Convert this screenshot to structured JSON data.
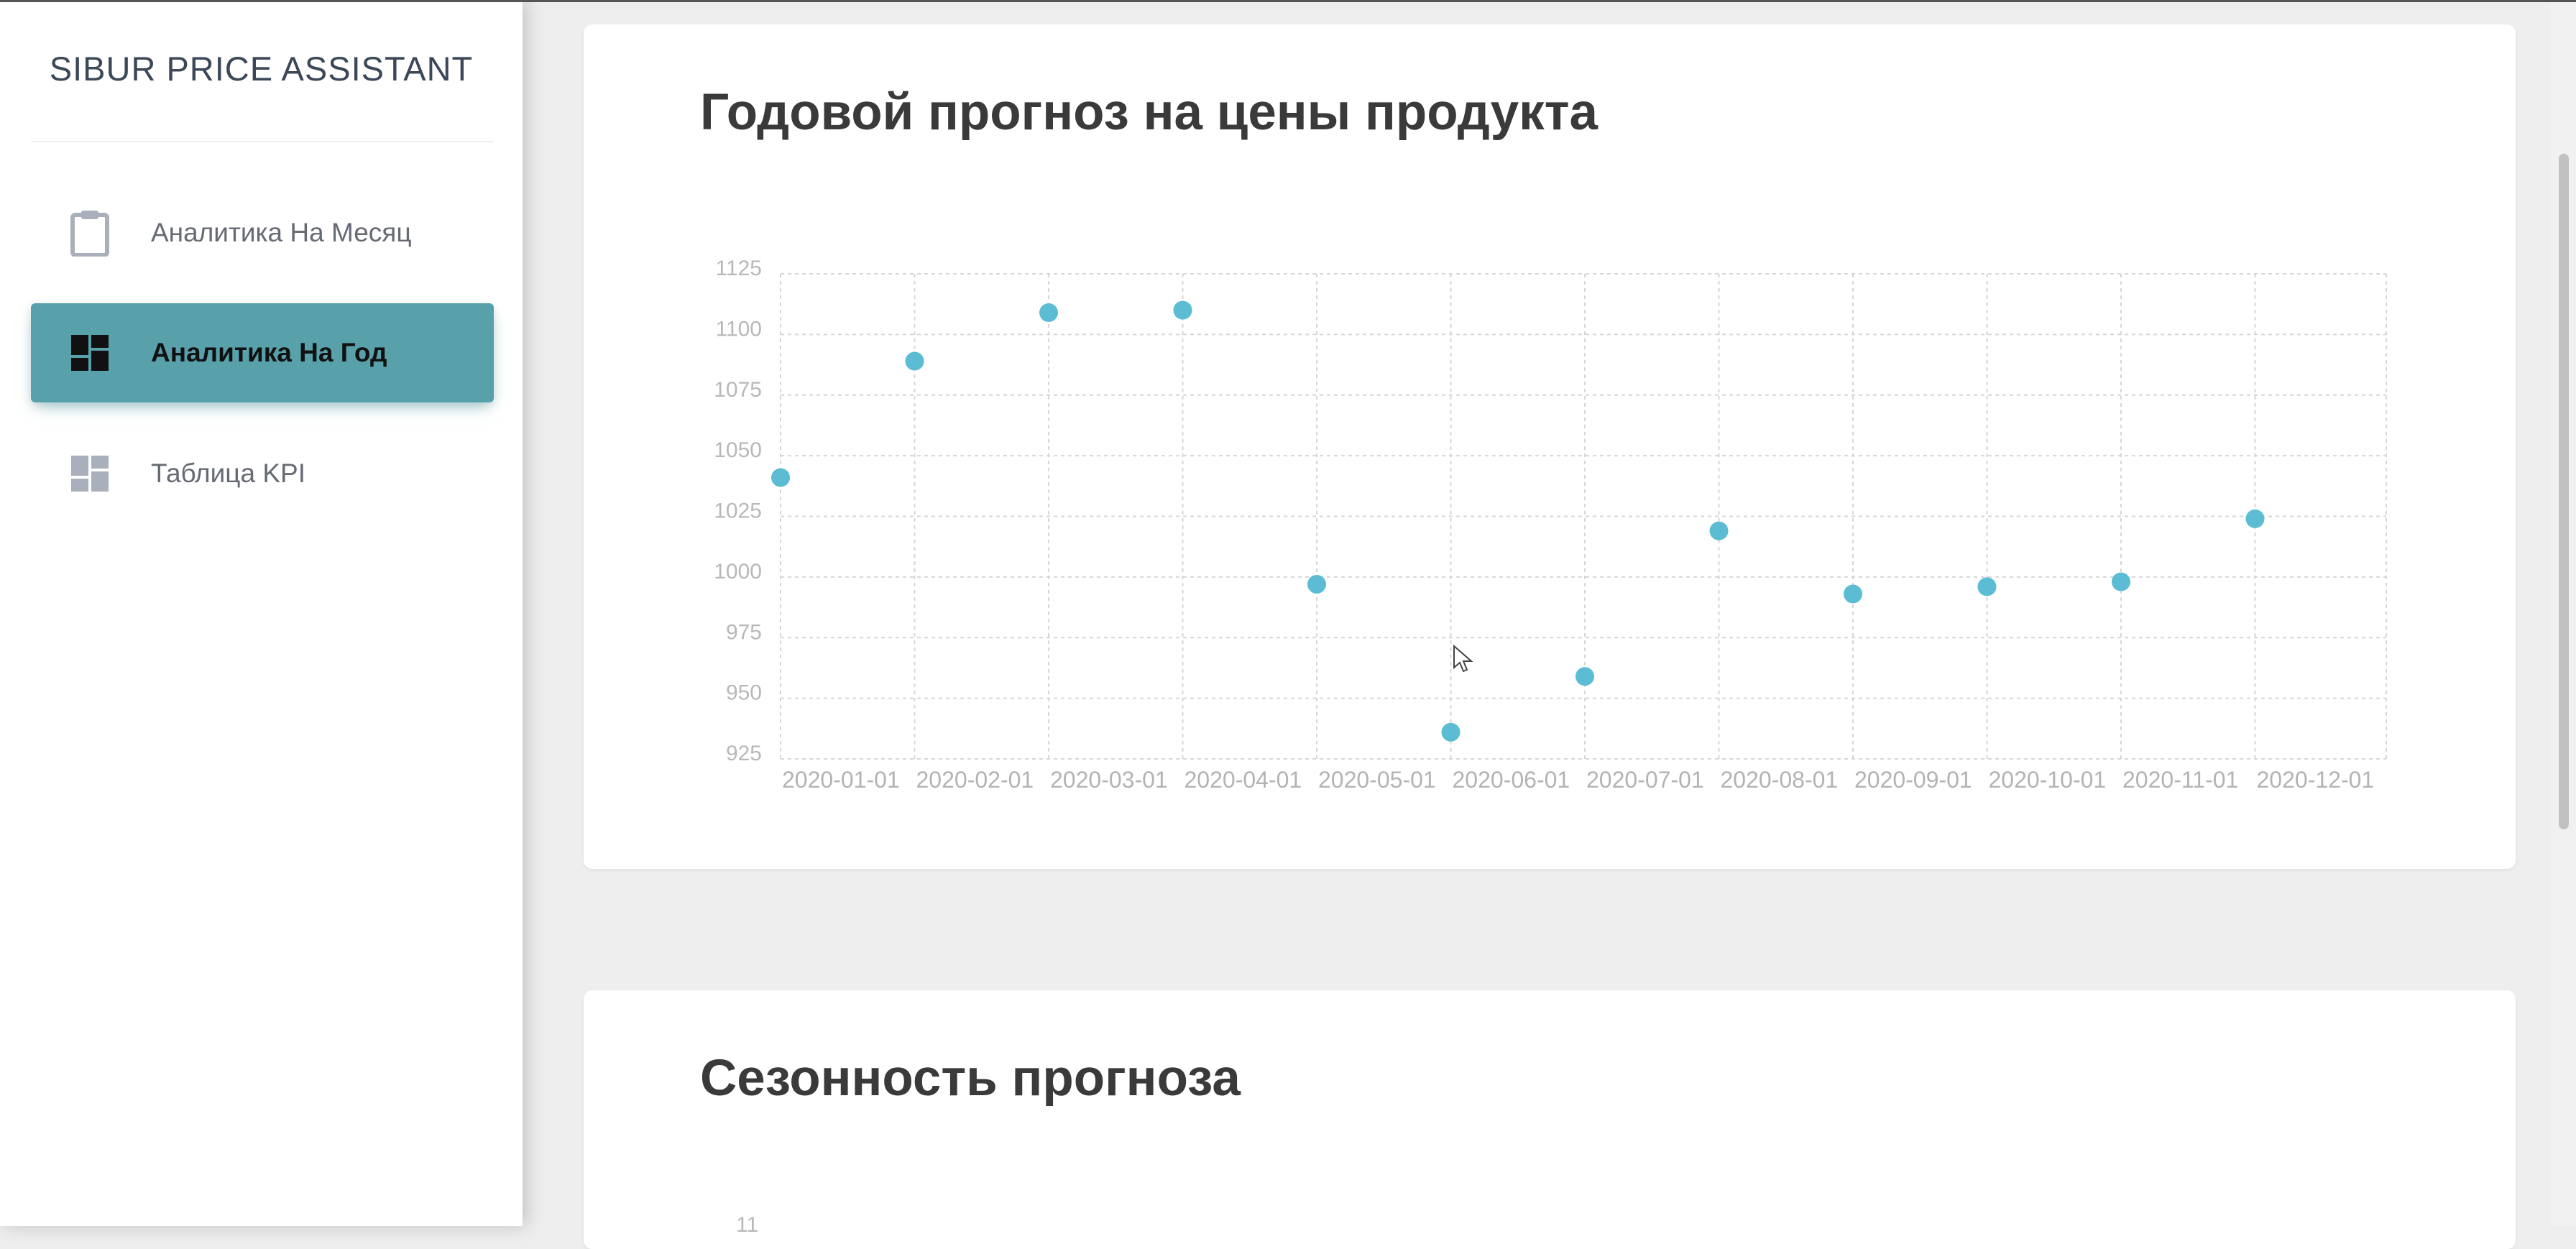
{
  "sidebar": {
    "brand": "SIBUR PRICE ASSISTANT",
    "items": [
      {
        "label": "Аналитика На Месяц",
        "icon": "clipboard-icon",
        "active": false
      },
      {
        "label": "Аналитика На Год",
        "icon": "dashboard-icon",
        "active": true
      },
      {
        "label": "Таблица KPI",
        "icon": "dashboard-icon",
        "active": false
      }
    ]
  },
  "main": {
    "card1_title": "Годовой прогноз на цены продукта",
    "card2_title": "Сезонность прогноза",
    "card2_axis_peek": "11"
  },
  "colors": {
    "accent": "#58a1ab",
    "point": "#5bbcd3",
    "grid": "#d6d6d6"
  },
  "chart_data": {
    "type": "scatter",
    "title": "Годовой прогноз на цены продукта",
    "xlabel": "",
    "ylabel": "",
    "x": [
      "2020-01-01",
      "2020-02-01",
      "2020-03-01",
      "2020-04-01",
      "2020-05-01",
      "2020-06-01",
      "2020-07-01",
      "2020-08-01",
      "2020-09-01",
      "2020-10-01",
      "2020-11-01",
      "2020-12-01"
    ],
    "values": [
      1041,
      1089,
      1109,
      1110,
      997,
      936,
      959,
      1019,
      993,
      996,
      998,
      1024
    ],
    "y_ticks": [
      925,
      950,
      975,
      1000,
      1025,
      1050,
      1075,
      1100,
      1125
    ],
    "ylim": [
      925,
      1125
    ],
    "grid": true,
    "legend": "none"
  }
}
